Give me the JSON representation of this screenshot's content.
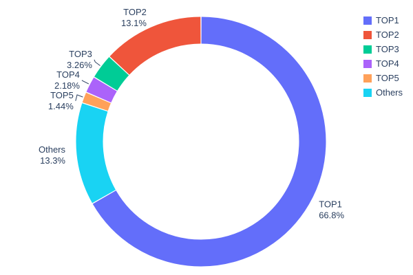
{
  "chart_data": {
    "type": "pie",
    "hole": 0.78,
    "title": "",
    "categories": [
      "TOP1",
      "TOP2",
      "TOP3",
      "TOP4",
      "TOP5",
      "Others"
    ],
    "values": [
      66.8,
      13.1,
      3.26,
      2.18,
      1.44,
      13.3
    ],
    "labels_pct": [
      "66.8%",
      "13.1%",
      "3.26%",
      "2.18%",
      "1.44%",
      "13.3%"
    ],
    "colors": [
      "#636EFA",
      "#EF553B",
      "#00CC96",
      "#AB63FA",
      "#FFA15A",
      "#19D3F3"
    ],
    "clockwise_order": [
      "TOP1",
      "Others",
      "TOP5",
      "TOP4",
      "TOP3",
      "TOP2"
    ],
    "legend": {
      "position": "top-right",
      "items": [
        "TOP1",
        "TOP2",
        "TOP3",
        "TOP4",
        "TOP5",
        "Others"
      ]
    },
    "text_color": "#2a3f5f",
    "background": "#ffffff"
  }
}
